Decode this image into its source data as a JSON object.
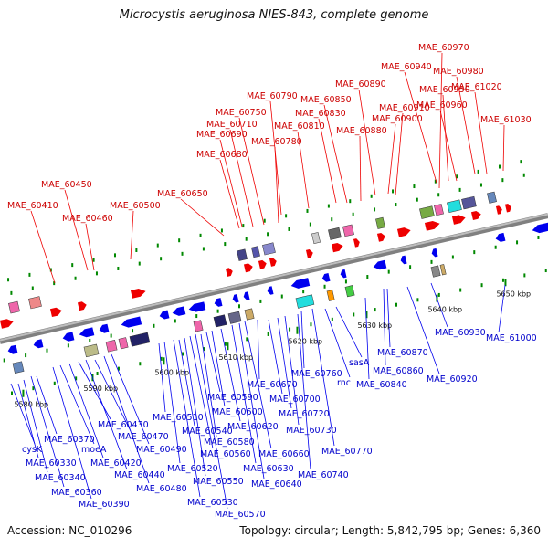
{
  "title": "Microcystis aeruginosa NIES-843, complete genome",
  "accession": "Accession: NC_010296",
  "summary": "Topology: circular; Length: 5,842,795 bp; Genes: 6,360",
  "colors": {
    "forward": "#ee0000",
    "reverse": "#0000ee",
    "backbone": "#808080",
    "tick": "#008800",
    "label_fwd": "#cc0000",
    "label_rev": "#0000cc"
  },
  "scale_labels": [
    "5580 kbp",
    "5590 kbp",
    "5600 kbp",
    "5610 kbp",
    "5620 kbp",
    "5630 kbp",
    "5640 kbp",
    "5650 kbp"
  ],
  "forward_genes": [
    "MAE_60410",
    "MAE_60450",
    "MAE_60460",
    "MAE_60500",
    "MAE_60650",
    "MAE_60680",
    "MAE_60690",
    "MAE_60710",
    "MAE_60750",
    "MAE_60780",
    "MAE_60790",
    "MAE_60810",
    "MAE_60830",
    "MAE_60850",
    "MAE_60880",
    "MAE_60890",
    "MAE_60900",
    "MAE_60910",
    "MAE_60940",
    "MAE_60950",
    "MAE_60960",
    "MAE_60970",
    "MAE_60980",
    "MAE_61020",
    "MAE_61030"
  ],
  "reverse_genes": [
    "cysK",
    "MAE_60330",
    "MAE_60340",
    "MAE_60360",
    "MAE_60370",
    "MAE_60390",
    "moeA",
    "MAE_60420",
    "MAE_60430",
    "MAE_60440",
    "MAE_60470",
    "MAE_60480",
    "MAE_60490",
    "MAE_60510",
    "MAE_60520",
    "MAE_60530",
    "MAE_60540",
    "MAE_60550",
    "MAE_60560",
    "MAE_60570",
    "MAE_60580",
    "MAE_60590",
    "MAE_60600",
    "MAE_60620",
    "MAE_60630",
    "MAE_60640",
    "MAE_60660",
    "MAE_60670",
    "MAE_60700",
    "MAE_60720",
    "MAE_60730",
    "MAE_60740",
    "MAE_60760",
    "MAE_60770",
    "rnc",
    "sasA",
    "MAE_60840",
    "MAE_60860",
    "MAE_60870",
    "MAE_60920",
    "MAE_60930",
    "MAE_61000"
  ]
}
